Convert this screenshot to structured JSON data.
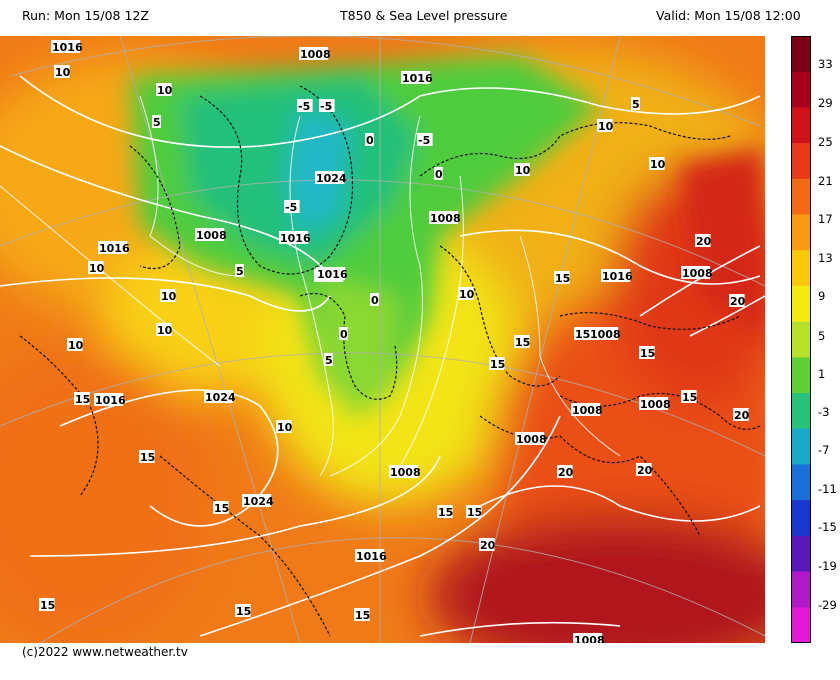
{
  "header": {
    "run": "Run: Mon 15/08 12Z",
    "title": "T850 & Sea Level pressure",
    "valid": "Valid: Mon 15/08 12:00"
  },
  "footer": {
    "credit": "(c)2022 www.netweather.tv"
  },
  "colorbar": {
    "labels": [
      "33",
      "29",
      "25",
      "21",
      "17",
      "13",
      "9",
      "5",
      "1",
      "-3",
      "-7",
      "-11",
      "-15",
      "-19",
      "-29"
    ],
    "colors": [
      "#7a0018",
      "#a8001c",
      "#d0101a",
      "#e83a18",
      "#f46a14",
      "#fb9a12",
      "#fcc80c",
      "#f2ec10",
      "#b8e028",
      "#60d038",
      "#26c27a",
      "#18a8c8",
      "#1870d8",
      "#1a38d0",
      "#5a18b8",
      "#b018c8",
      "#e418d8"
    ]
  },
  "map": {
    "contour_labels": [
      "1016",
      "10",
      "1008",
      "1016",
      "5",
      "10",
      "-5",
      "10",
      "5",
      "-5",
      "1024",
      "1016",
      "10",
      "0",
      "-5",
      "-5",
      "10",
      "1008",
      "10",
      "0",
      "1008",
      "1016",
      "1016",
      "10",
      "1016",
      "20",
      "1016",
      "5",
      "10",
      "15",
      "0",
      "15",
      "1008",
      "20",
      "15",
      "1008",
      "0",
      "10",
      "10",
      "5",
      "1016",
      "15",
      "15",
      "1008",
      "15",
      "1024",
      "10",
      "15",
      "20",
      "1008",
      "15",
      "1008",
      "20",
      "15",
      "1024",
      "1008",
      "20",
      "15",
      "1016",
      "15",
      "20",
      "15",
      "15",
      "15",
      "1008"
    ]
  }
}
